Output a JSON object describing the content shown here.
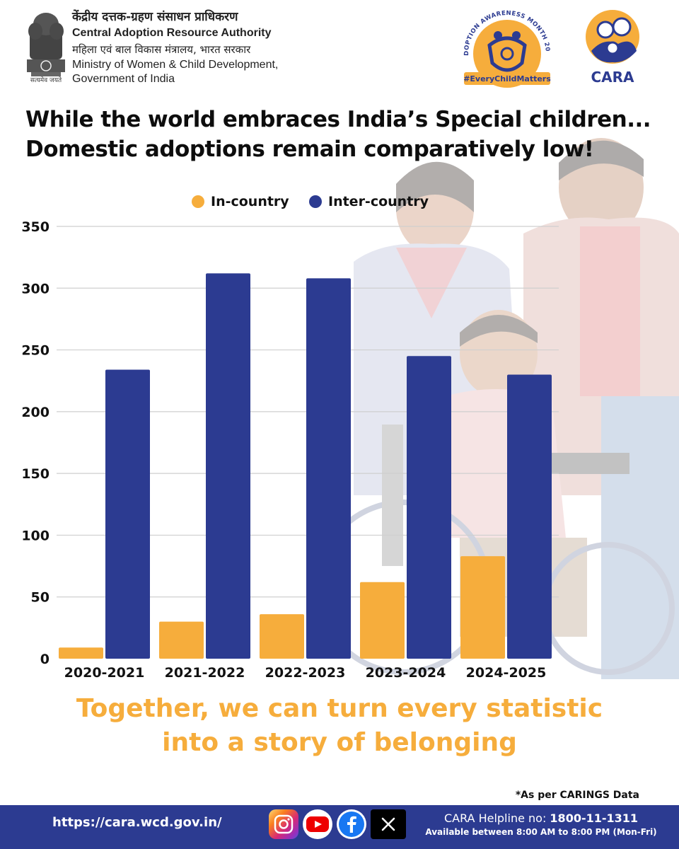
{
  "header": {
    "hindi_authority": "केंद्रीय दत्तक-ग्रहण संसाधन प्राधिकरण",
    "english_authority": "Central Adoption Resource Authority",
    "hindi_ministry": "महिला एवं बाल विकास मंत्रालय, भारत सरकार",
    "english_ministry_line1": "Ministry of Women & Child Development,",
    "english_ministry_line2": "Government of India",
    "emblem_motto": "सत्यमेव जयते",
    "badge_arc_text": "ADOPTION AWARENESS MONTH 2025",
    "badge_hashtag": "#EveryChildMatters",
    "logo_text": "CARA"
  },
  "headline": {
    "line1": "While the world embraces India’s Special children...",
    "line2": "Domestic adoptions remain comparatively low!"
  },
  "chart_data": {
    "type": "bar",
    "categories": [
      "2020-2021",
      "2021-2022",
      "2022-2023",
      "2023-2024",
      "2024-2025"
    ],
    "series": [
      {
        "name": "In-country",
        "color": "#f6ad3c",
        "values": [
          9,
          30,
          36,
          62,
          83
        ]
      },
      {
        "name": "Inter-country",
        "color": "#2c3b91",
        "values": [
          234,
          312,
          308,
          245,
          230
        ]
      }
    ],
    "yticks": [
      0,
      50,
      100,
      150,
      200,
      250,
      300,
      350
    ],
    "ylim": [
      0,
      350
    ],
    "grid": true,
    "legend_position": "top-center"
  },
  "tagline": {
    "line1": "Together, we can turn every statistic",
    "line2": "into a story of belonging"
  },
  "footnote": "*As per CARINGS Data",
  "footer": {
    "url": "https://cara.wcd.gov.in/",
    "helpline_label": "CARA Helpline no: ",
    "helpline_number": "1800-11-1311",
    "helpline_hours": "Available between 8:00 AM to 8:00 PM (Mon-Fri)"
  },
  "colors": {
    "accent_orange": "#f6ad3c",
    "brand_blue": "#2c3b91"
  },
  "icons": [
    "national-emblem-icon",
    "awareness-badge-icon",
    "cara-logo-icon",
    "instagram-icon",
    "youtube-icon",
    "facebook-icon",
    "x-icon"
  ]
}
